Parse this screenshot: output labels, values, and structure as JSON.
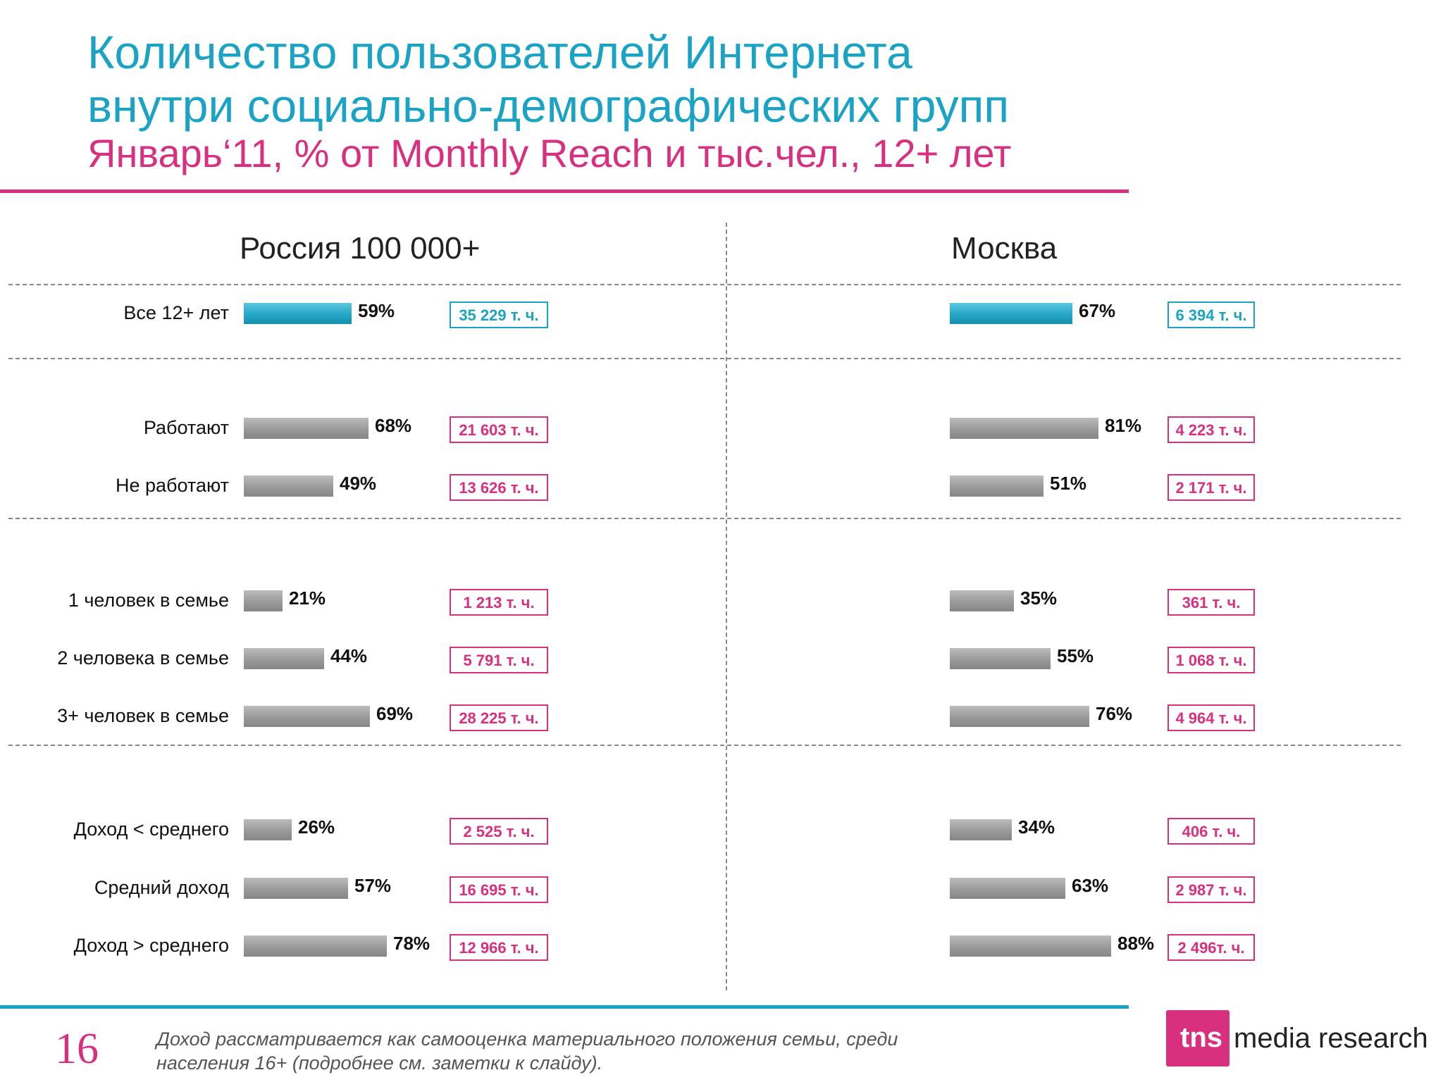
{
  "header": {
    "title_line1": "Количество пользователей Интернета",
    "title_line2": "внутри социально-демографических групп",
    "subtitle": "Январь‘11, % от Monthly Reach и тыс.чел., 12+ лет"
  },
  "colors": {
    "title": "#1aa3c4",
    "accent": "#d8307f",
    "bar_total": "#25a6c6",
    "bar": "#9a9a9a"
  },
  "chart_data": [
    {
      "type": "bar",
      "title": "Россия 100 000+",
      "xlim": [
        0,
        100
      ],
      "categories": [
        "Все 12+ лет",
        "Работают",
        "Не работают",
        "1 человек в семье",
        "2 человека в семье",
        "3+ человек в семье",
        "Доход < среднего",
        "Средний доход",
        "Доход > среднего"
      ],
      "values": [
        59,
        68,
        49,
        21,
        44,
        69,
        26,
        57,
        78
      ],
      "value_labels": [
        "59%",
        "68%",
        "49%",
        "21%",
        "44%",
        "69%",
        "26%",
        "57%",
        "78%"
      ],
      "thousands": [
        "35 229 т. ч.",
        "21 603 т. ч.",
        "13 626 т. ч.",
        "1 213 т. ч.",
        "5 791 т. ч.",
        "28 225 т. ч.",
        "2 525 т. ч.",
        "16 695 т. ч.",
        "12 966 т. ч."
      ]
    },
    {
      "type": "bar",
      "title": "Москва",
      "xlim": [
        0,
        100
      ],
      "categories": [
        "Все 12+ лет",
        "Работают",
        "Не работают",
        "1 человек в семье",
        "2 человека в семье",
        "3+ человек в семье",
        "Доход < среднего",
        "Средний доход",
        "Доход > среднего"
      ],
      "values": [
        67,
        81,
        51,
        35,
        55,
        76,
        34,
        63,
        88
      ],
      "value_labels": [
        "67%",
        "81%",
        "51%",
        "35%",
        "55%",
        "76%",
        "34%",
        "63%",
        "88%"
      ],
      "thousands": [
        "6 394 т. ч.",
        "4 223 т. ч.",
        "2 171 т. ч.",
        "361 т. ч.",
        "1 068 т. ч.",
        "4 964 т. ч.",
        "406 т. ч.",
        "2 987 т. ч.",
        "2 496т. ч."
      ]
    }
  ],
  "footer": {
    "page_number": "16",
    "footnote_line1": "Доход рассматривается как самооценка материального положения семьи, среди",
    "footnote_line2": "населения 16+ (подробнее см. заметки к слайду).",
    "logo_mark": "tns",
    "logo_text": "media research"
  }
}
